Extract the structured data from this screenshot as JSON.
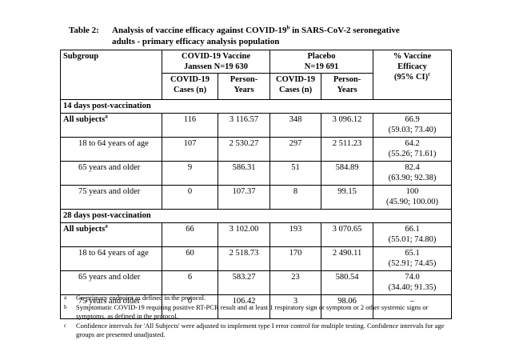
{
  "title": {
    "label": "Table 2:",
    "line1_pre": "Analysis of vaccine efficacy against COVID-19",
    "line1_sup": "b",
    "line1_post": " in SARS-CoV-2 seronegative",
    "line2": "adults - primary efficacy analysis population"
  },
  "table": {
    "col_headers": {
      "subgroup": "Subgroup",
      "vaccine_group_line1": "COVID-19 Vaccine",
      "vaccine_group_line2": "Janssen N=19 630",
      "placebo_group_line1": "Placebo",
      "placebo_group_line2": "N=19 691",
      "cases_line1": "COVID-19",
      "cases_line2": "Cases (n)",
      "person_years_line1": "Person-",
      "person_years_line2": "Years",
      "efficacy_line1": "% Vaccine",
      "efficacy_line2": "Efficacy",
      "efficacy_line3": "(95% CI)",
      "efficacy_sup": "c"
    },
    "sections": [
      {
        "header": "14 days post-vaccination",
        "rows": [
          {
            "label": "All subjects",
            "sup": "a",
            "bold": true,
            "indent": false,
            "vaccine_cases": "116",
            "vaccine_py": "3 116.57",
            "placebo_cases": "348",
            "placebo_py": "3 096.12",
            "efficacy": "66.9",
            "ci": "(59.03; 73.40)"
          },
          {
            "label": "18 to 64 years of age",
            "bold": false,
            "indent": true,
            "vaccine_cases": "107",
            "vaccine_py": "2 530.27",
            "placebo_cases": "297",
            "placebo_py": "2 511.23",
            "efficacy": "64.2",
            "ci": "(55.26; 71.61)"
          },
          {
            "label": "65 years and older",
            "bold": false,
            "indent": true,
            "vaccine_cases": "9",
            "vaccine_py": "586.31",
            "placebo_cases": "51",
            "placebo_py": "584.89",
            "efficacy": "82.4",
            "ci": "(63.90; 92.38)"
          },
          {
            "label": "75 years and older",
            "bold": false,
            "indent": true,
            "vaccine_cases": "0",
            "vaccine_py": "107.37",
            "placebo_cases": "8",
            "placebo_py": "99.15",
            "efficacy": "100",
            "ci": "(45.90; 100.00)"
          }
        ]
      },
      {
        "header": "28 days post-vaccination",
        "rows": [
          {
            "label": "All subjects",
            "sup": "a",
            "bold": true,
            "indent": false,
            "vaccine_cases": "66",
            "vaccine_py": "3 102.00",
            "placebo_cases": "193",
            "placebo_py": "3 070.65",
            "efficacy": "66.1",
            "ci": "(55.01; 74.80)"
          },
          {
            "label": "18 to 64 years of age",
            "bold": false,
            "indent": true,
            "vaccine_cases": "60",
            "vaccine_py": "2 518.73",
            "placebo_cases": "170",
            "placebo_py": "2 490.11",
            "efficacy": "65.1",
            "ci": "(52.91; 74.45)"
          },
          {
            "label": "65 years and older",
            "bold": false,
            "indent": true,
            "vaccine_cases": "6",
            "vaccine_py": "583.27",
            "placebo_cases": "23",
            "placebo_py": "580.54",
            "efficacy": "74.0",
            "ci": "(34.40; 91.35)"
          },
          {
            "label": "75 years and older",
            "bold": false,
            "indent": true,
            "vaccine_cases": "0",
            "vaccine_py": "106.42",
            "placebo_cases": "3",
            "placebo_py": "98.06",
            "efficacy": "–",
            "ci": ""
          }
        ]
      }
    ]
  },
  "footnotes": [
    {
      "marker": "a",
      "text": "Co-primary endpoint as defined in the protocol."
    },
    {
      "marker": "b",
      "text": "Symptomatic COVID-19 requiring positive RT-PCR result and at least 1 respiratory sign or symptom or 2 other systemic signs or symptoms, as defined in the protocol."
    },
    {
      "marker": "c",
      "text": "Confidence intervals for 'All Subjects' were adjusted to implement type I error control for multiple testing. Confidence intervals for age groups are presented unadjusted."
    }
  ]
}
